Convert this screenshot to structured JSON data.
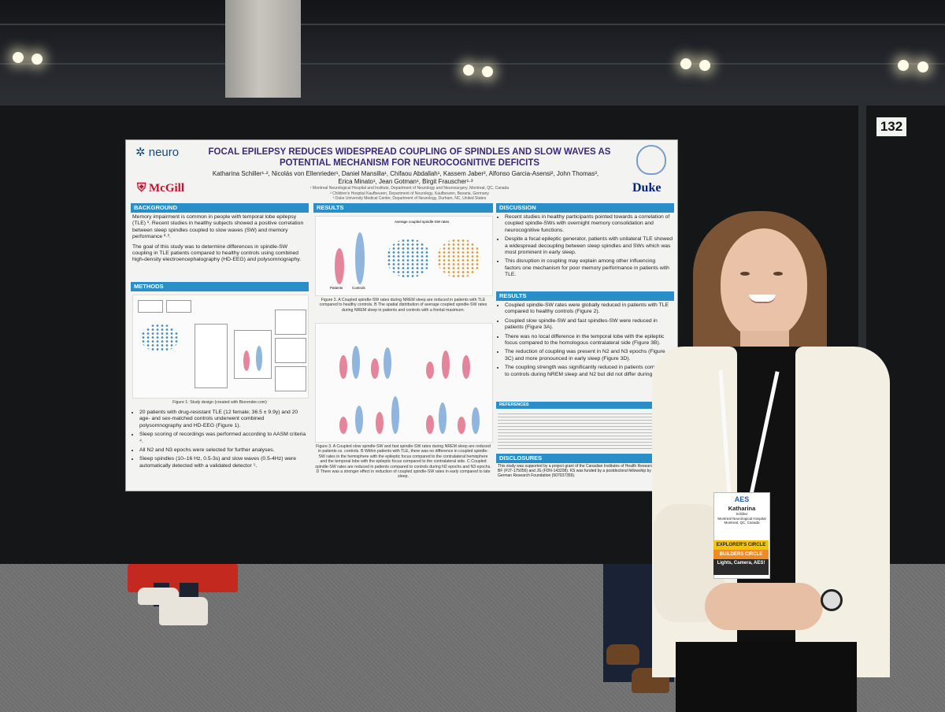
{
  "booth": {
    "panel_number": "132"
  },
  "poster": {
    "title": "FOCAL EPILEPSY REDUCES WIDESPREAD COUPLING OF SPINDLES AND SLOW WAVES AS POTENTIAL MECHANISM FOR NEUROCOGNITIVE DEFICITS",
    "authors": "Katharina Schiller¹·², Nicolás von Ellenrieder¹, Daniel Mansilla¹, Chifaou Abdallah¹, Kassem Jaber², Alfonso Garcia-Asensi², John Thomas³, Erica Minato¹, Jean Gotman¹, Birgit Frauscher¹·³",
    "affiliations": [
      "¹ Montreal Neurological Hospital and Institute, Department of Neurology and Neurosurgery, Montreal, QC, Canada",
      "² Children's Hospital Kaufbeuren, Department of Neurology, Kaufbeuren, Bavaria, Germany",
      "³ Duke University Medical Center, Department of Neurology, Durham, NC, United States"
    ],
    "logos": {
      "neuro": "neuro",
      "mcgill": "McGill",
      "duke": "Duke"
    },
    "sections": {
      "background": {
        "heading": "BACKGROUND",
        "paragraphs": [
          "Memory impairment is common in people with temporal lobe epilepsy (TLE) ¹. Recent studies in healthy subjects showed a positive correlation between sleep spindles coupled to slow waves (SW) and memory performance ²·³.",
          "The goal of this study was to determine differences in spindle-SW coupling in TLE patients compared to healthy controls using combined high-density electroencephalography (HD-EEG) and polysomnography."
        ]
      },
      "methods": {
        "heading": "METHODS",
        "figure_caption": "Figure 1: Study design (created with Biorender.com)",
        "bullets": [
          "20 patients with drug-resistant TLE (12 female; 36.5 ± 9.9y) and 20 age- and sex-matched controls underwent combined polysomnography and HD-EEG (Figure 1).",
          "Sleep scoring of recordings was performed according to AASM criteria ⁴.",
          "All N2 and N3 epochs were selected for further analyses.",
          "Sleep spindles (10–16 Hz, 0.5-3s) and slow waves (0.5-4Hz) were automatically detected with a validated detector ⁵."
        ]
      },
      "results_figures": {
        "heading": "RESULTS",
        "figure2_caption": "Figure 2. A Coupled spindle-SW rates during NREM sleep are reduced in patients with TLE compared to healthy controls. B The spatial distribution of average coupled spindle-SW rates during NREM sleep in patients and controls with a frontal maximum.",
        "figure3_caption": "Figure 3. A Coupled slow spindle-SW and fast spindle-SW rates during NREM sleep are reduced in patients vs. controls. B Within patients with TLE, there was no difference in coupled spindle-SW rates in the hemisphere with the epileptic focus compared to the contralateral hemisphere and the temporal lobe with the epileptic focus compared to the contralateral side. C Coupled spindle-SW rates are reduced in patients compared to controls during N2 epochs and N3 epochs. D There was a stronger effect in reduction of coupled spindle-SW rates in early compared to late sleep.",
        "fig_labels": [
          "Patients",
          "Controls",
          "Average coupled spindle-SW rates"
        ]
      },
      "discussion": {
        "heading": "DISCUSSION",
        "bullets": [
          "Recent studies in healthy participants pointed towards a correlation of coupled spindle-SWs with overnight memory consolidation and neurocognitive functions.",
          "Despite a focal epileptic generator, patients with unilateral TLE showed a widespread decoupling between sleep spindles and SWs which was most prominent in early sleep.",
          "This disruption in coupling may explain among other influencing factors one mechanism for poor memory performance in patients with TLE."
        ]
      },
      "results": {
        "heading": "RESULTS",
        "bullets": [
          "Coupled spindle-SW rates were globally reduced in patients with TLE compared to healthy controls (Figure 2).",
          "Coupled slow spindle-SW and fast spindles-SW were reduced in patients (Figure 3A).",
          "There was no local difference in the temporal lobe with the epileptic focus compared to the homologous contralateral side (Figure 3B).",
          "The reduction of coupling was present in N2 and N3 epochs (Figure 3C) and more pronounced in early sleep (Figure 3D).",
          "The coupling strength was significantly reduced in patients compared to controls during NREM sleep and N2 but did not differ during N3."
        ]
      },
      "references": {
        "heading": "REFERENCES"
      },
      "disclosures": {
        "heading": "DISCLOSURES",
        "text": "This study was supported by a project grant of the Canadian Institutes of Health Research to BF (PJT-175056) and JG (FDN-143208). KS was funded by a postdoctoral fellowship by the German Research Foundation (507037359)."
      }
    }
  },
  "name_badge": {
    "org": "AES",
    "name": "Katharina",
    "surname": "Schiller",
    "affiliation": "Montreal Neurological Hospital",
    "location": "Montreal, QC, Canada",
    "ribbons": [
      "EXPLORER'S CIRCLE",
      "BUILDERS CIRCLE",
      "Lights, Camera, AES!"
    ]
  },
  "colors": {
    "section_header": "#2a8fc9",
    "title": "#3b2a7a",
    "highlight": "#c0392b",
    "ribbon_yellow": "#f5c400",
    "ribbon_orange": "#f08a24",
    "ribbon_dark": "#2b2b2b"
  }
}
